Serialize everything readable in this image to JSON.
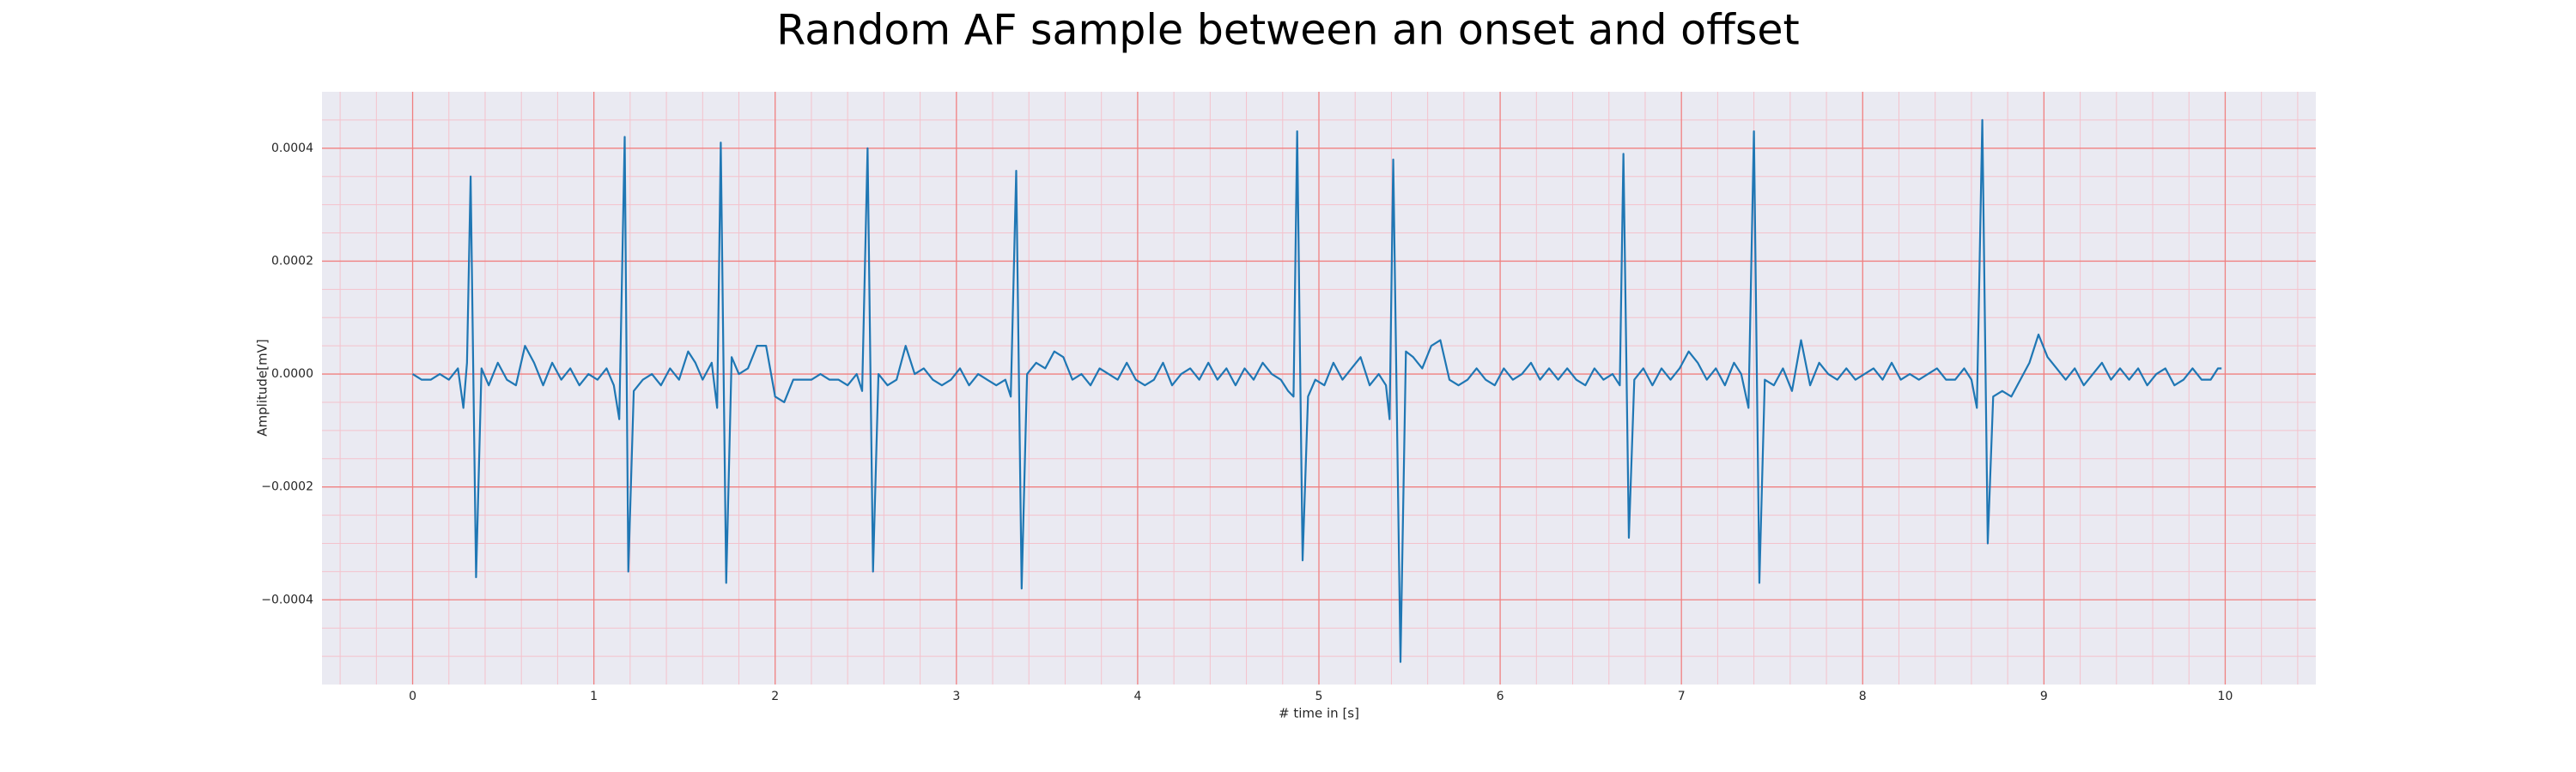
{
  "chart_data": {
    "type": "line",
    "title": "Random AF sample between an onset and offset",
    "x_label": "# time in [s]",
    "y_label": "Amplitude[mV]",
    "color": "#1f77b4",
    "grid": true,
    "grid_color": "#f08080",
    "minor_grid": true,
    "minor_grid_color": "#f4c2cc",
    "background": "#eaeaf2",
    "xlim": [
      -0.5,
      10.5
    ],
    "ylim": [
      -0.00055,
      0.0005
    ],
    "xticks": [
      0,
      1,
      2,
      3,
      4,
      5,
      6,
      7,
      8,
      9,
      10
    ],
    "yticks": [
      {
        "value": -0.0004,
        "label": "−0.0004"
      },
      {
        "value": -0.0002,
        "label": "−0.0002"
      },
      {
        "value": 0,
        "label": "0.0000"
      },
      0.0002,
      0.0004
    ],
    "xminorticks": [
      -0.4,
      -0.2,
      0.2,
      0.4,
      0.6,
      0.8,
      1.2,
      1.4,
      1.6,
      1.8,
      2.2,
      2.4,
      2.6,
      2.8,
      3.2,
      3.4,
      3.6,
      3.8,
      4.2,
      4.4,
      4.6,
      4.8,
      5.2,
      5.4,
      5.6,
      5.8,
      6.2,
      6.4,
      6.6,
      6.8,
      7.2,
      7.4,
      7.6,
      7.8,
      8.2,
      8.4,
      8.6,
      8.8,
      9.2,
      9.4,
      9.6,
      9.8,
      10.2,
      10.4
    ],
    "yminorticks": [
      -0.0005,
      -0.00045,
      -0.00035,
      -0.0003,
      -0.00025,
      -0.00015,
      -0.0001,
      -5e-05,
      5e-05,
      0.0001,
      0.00015,
      0.00025,
      0.0003,
      0.00035,
      0.00045
    ],
    "x": [
      0,
      0.05,
      0.1,
      0.15,
      0.2,
      0.25,
      0.28,
      0.3,
      0.32,
      0.35,
      0.38,
      0.42,
      0.47,
      0.52,
      0.57,
      0.62,
      0.67,
      0.72,
      0.77,
      0.82,
      0.87,
      0.92,
      0.97,
      1.02,
      1.07,
      1.11,
      1.14,
      1.17,
      1.19,
      1.22,
      1.27,
      1.32,
      1.37,
      1.42,
      1.47,
      1.52,
      1.56,
      1.6,
      1.65,
      1.68,
      1.7,
      1.73,
      1.76,
      1.8,
      1.85,
      1.9,
      1.95,
      2,
      2.05,
      2.1,
      2.15,
      2.2,
      2.25,
      2.3,
      2.35,
      2.4,
      2.45,
      2.48,
      2.51,
      2.54,
      2.57,
      2.62,
      2.67,
      2.72,
      2.77,
      2.82,
      2.87,
      2.92,
      2.97,
      3.02,
      3.07,
      3.12,
      3.17,
      3.22,
      3.27,
      3.3,
      3.33,
      3.36,
      3.39,
      3.44,
      3.49,
      3.54,
      3.59,
      3.64,
      3.69,
      3.74,
      3.79,
      3.84,
      3.89,
      3.94,
      3.99,
      4.04,
      4.09,
      4.14,
      4.19,
      4.24,
      4.29,
      4.34,
      4.39,
      4.44,
      4.49,
      4.54,
      4.59,
      4.64,
      4.69,
      4.74,
      4.79,
      4.83,
      4.86,
      4.88,
      4.91,
      4.94,
      4.98,
      5.03,
      5.08,
      5.13,
      5.18,
      5.23,
      5.28,
      5.33,
      5.37,
      5.39,
      5.41,
      5.45,
      5.48,
      5.52,
      5.57,
      5.62,
      5.67,
      5.72,
      5.77,
      5.82,
      5.87,
      5.92,
      5.97,
      6.02,
      6.07,
      6.12,
      6.17,
      6.22,
      6.27,
      6.32,
      6.37,
      6.42,
      6.47,
      6.52,
      6.57,
      6.62,
      6.66,
      6.68,
      6.71,
      6.74,
      6.79,
      6.84,
      6.89,
      6.94,
      6.99,
      7.04,
      7.09,
      7.14,
      7.19,
      7.24,
      7.29,
      7.33,
      7.37,
      7.4,
      7.43,
      7.46,
      7.51,
      7.56,
      7.61,
      7.66,
      7.71,
      7.76,
      7.81,
      7.86,
      7.91,
      7.96,
      8.01,
      8.06,
      8.11,
      8.16,
      8.21,
      8.26,
      8.31,
      8.36,
      8.41,
      8.46,
      8.51,
      8.56,
      8.6,
      8.63,
      8.66,
      8.69,
      8.72,
      8.77,
      8.82,
      8.87,
      8.92,
      8.97,
      9.02,
      9.07,
      9.12,
      9.17,
      9.22,
      9.27,
      9.32,
      9.37,
      9.42,
      9.47,
      9.52,
      9.57,
      9.62,
      9.67,
      9.72,
      9.77,
      9.82,
      9.87,
      9.92,
      9.96,
      9.98
    ],
    "values": [
      0,
      -1e-05,
      -1e-05,
      0,
      -1e-05,
      1e-05,
      -6e-05,
      2e-05,
      0.00035,
      -0.00036,
      1e-05,
      -2e-05,
      2e-05,
      -1e-05,
      -2e-05,
      5e-05,
      2e-05,
      -2e-05,
      2e-05,
      -1e-05,
      1e-05,
      -2e-05,
      0,
      -1e-05,
      1e-05,
      -2e-05,
      -8e-05,
      0.00042,
      -0.00035,
      -3e-05,
      -1e-05,
      0,
      -2e-05,
      1e-05,
      -1e-05,
      4e-05,
      2e-05,
      -1e-05,
      2e-05,
      -6e-05,
      0.00041,
      -0.00037,
      3e-05,
      0,
      1e-05,
      5e-05,
      5e-05,
      -4e-05,
      -5e-05,
      -1e-05,
      -1e-05,
      -1e-05,
      0,
      -1e-05,
      -1e-05,
      -2e-05,
      0,
      -3e-05,
      0.0004,
      -0.00035,
      0,
      -2e-05,
      -1e-05,
      5e-05,
      0,
      1e-05,
      -1e-05,
      -2e-05,
      -1e-05,
      1e-05,
      -2e-05,
      0,
      -1e-05,
      -2e-05,
      -1e-05,
      -4e-05,
      0.00036,
      -0.00038,
      0,
      2e-05,
      1e-05,
      4e-05,
      3e-05,
      -1e-05,
      0,
      -2e-05,
      1e-05,
      0,
      -1e-05,
      2e-05,
      -1e-05,
      -2e-05,
      -1e-05,
      2e-05,
      -2e-05,
      0,
      1e-05,
      -1e-05,
      2e-05,
      -1e-05,
      1e-05,
      -2e-05,
      1e-05,
      -1e-05,
      2e-05,
      0,
      -1e-05,
      -3e-05,
      -4e-05,
      0.00043,
      -0.00033,
      -4e-05,
      -1e-05,
      -2e-05,
      2e-05,
      -1e-05,
      1e-05,
      3e-05,
      -2e-05,
      0,
      -2e-05,
      -8e-05,
      0.00038,
      -0.00051,
      4e-05,
      3e-05,
      1e-05,
      5e-05,
      6e-05,
      -1e-05,
      -2e-05,
      -1e-05,
      1e-05,
      -1e-05,
      -2e-05,
      1e-05,
      -1e-05,
      0,
      2e-05,
      -1e-05,
      1e-05,
      -1e-05,
      1e-05,
      -1e-05,
      -2e-05,
      1e-05,
      -1e-05,
      0,
      -2e-05,
      0.00039,
      -0.00029,
      -1e-05,
      1e-05,
      -2e-05,
      1e-05,
      -1e-05,
      1e-05,
      4e-05,
      2e-05,
      -1e-05,
      1e-05,
      -2e-05,
      2e-05,
      0,
      -6e-05,
      0.00043,
      -0.00037,
      -1e-05,
      -2e-05,
      1e-05,
      -3e-05,
      6e-05,
      -2e-05,
      2e-05,
      0,
      -1e-05,
      1e-05,
      -1e-05,
      0,
      1e-05,
      -1e-05,
      2e-05,
      -1e-05,
      0,
      -1e-05,
      0,
      1e-05,
      -1e-05,
      -1e-05,
      1e-05,
      -1e-05,
      -6e-05,
      0.00045,
      -0.0003,
      -4e-05,
      -3e-05,
      -4e-05,
      -1e-05,
      2e-05,
      7e-05,
      3e-05,
      1e-05,
      -1e-05,
      1e-05,
      -2e-05,
      0,
      2e-05,
      -1e-05,
      1e-05,
      -1e-05,
      1e-05,
      -2e-05,
      0,
      1e-05,
      -2e-05,
      -1e-05,
      1e-05,
      -1e-05,
      -1e-05,
      1e-05,
      1e-05
    ]
  }
}
